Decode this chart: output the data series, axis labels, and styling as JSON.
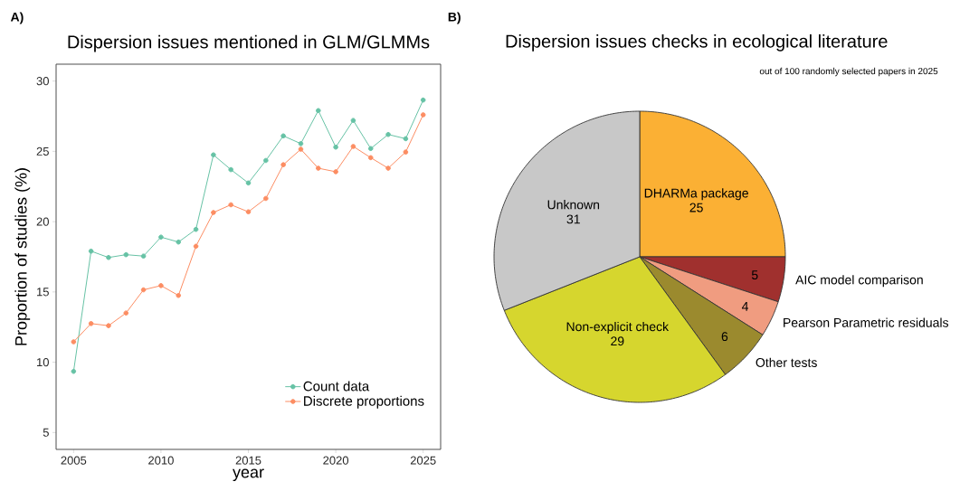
{
  "chart_data": [
    {
      "type": "line",
      "title": "Dispersion issues mentioned in GLM/GLMMs",
      "xlabel": "year",
      "ylabel": "Proportion of studies (%)",
      "x": [
        2005,
        2006,
        2007,
        2008,
        2009,
        2010,
        2011,
        2012,
        2013,
        2014,
        2015,
        2016,
        2017,
        2018,
        2019,
        2020,
        2021,
        2022,
        2023,
        2024,
        2025
      ],
      "series": [
        {
          "name": "Count data",
          "color": "#66c2a5",
          "values": [
            9.35,
            17.9,
            17.45,
            17.65,
            17.55,
            18.9,
            18.55,
            19.45,
            24.75,
            23.7,
            22.75,
            24.35,
            26.1,
            25.55,
            27.9,
            25.3,
            27.2,
            25.2,
            26.2,
            25.9,
            28.65
          ]
        },
        {
          "name": "Discrete proportions",
          "color": "#fc8d62",
          "values": [
            11.45,
            12.75,
            12.6,
            13.5,
            15.15,
            15.45,
            14.75,
            18.25,
            20.65,
            21.2,
            20.7,
            21.65,
            24.05,
            25.15,
            23.8,
            23.55,
            25.35,
            24.55,
            23.8,
            24.95,
            27.6
          ]
        }
      ],
      "xlim": [
        2004,
        2026
      ],
      "ylim": [
        3.8,
        31.2
      ],
      "xticks": [
        2005,
        2010,
        2015,
        2020,
        2025
      ],
      "yticks": [
        5,
        10,
        15,
        20,
        25,
        30
      ],
      "grid": false,
      "legend": "bottom right",
      "marker": "circle",
      "line_style": "solid",
      "annotations": [
        "A)"
      ]
    },
    {
      "type": "pie",
      "title": "Dispersion issues checks in ecological literature",
      "subtitle": "out of 100 randomly selected papers in 2025",
      "categories": [
        "DHARMa package",
        "AIC model comparison",
        "Pearson Parametric residuals",
        "Other tests",
        "Non-explicit check",
        "Unknown"
      ],
      "values": [
        25,
        5,
        4,
        6,
        29,
        31
      ],
      "colors": [
        "#fbb034",
        "#a0302e",
        "#f09c80",
        "#9b8a2e",
        "#d6d62e",
        "#c8c8c8"
      ],
      "data_labels": true,
      "annotations": [
        "B)"
      ]
    }
  ]
}
